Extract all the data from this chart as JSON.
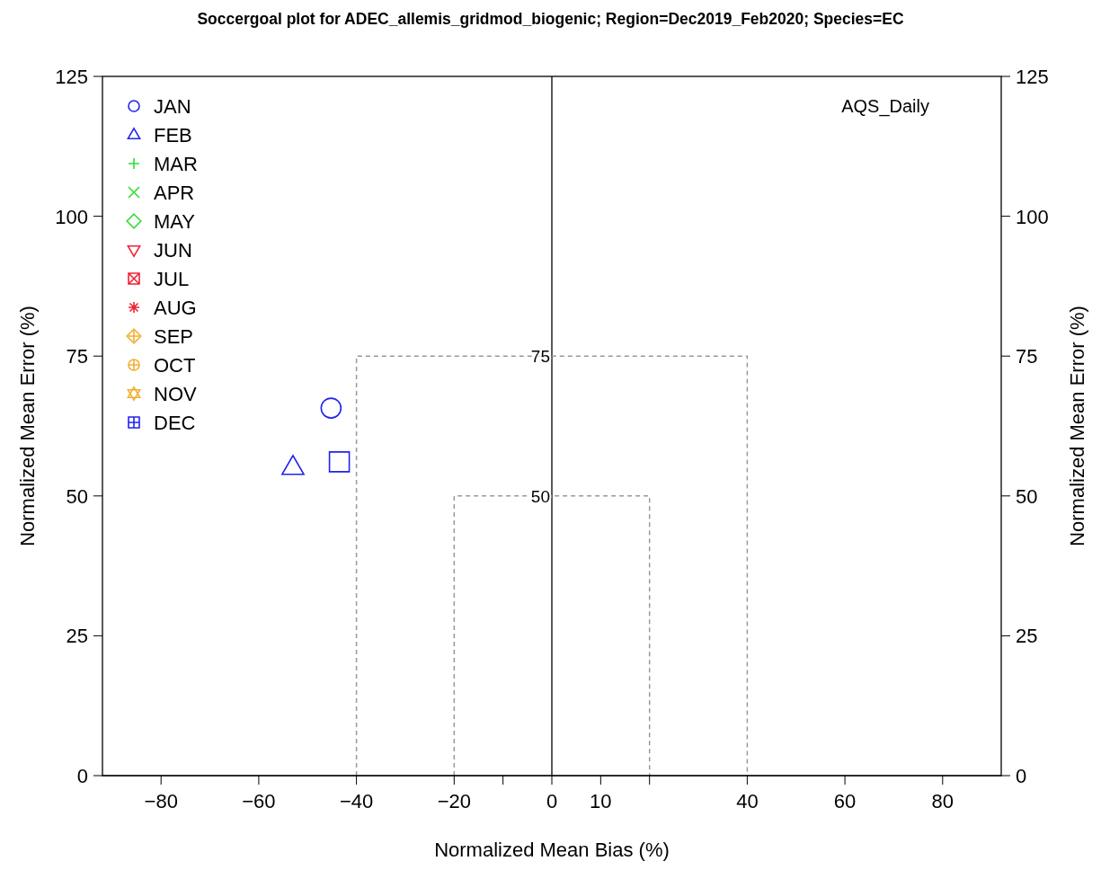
{
  "chart_data": {
    "type": "scatter",
    "title": "Soccergoal plot for ADEC_allemis_gridmod_biogenic; Region=Dec2019_Feb2020; Species=EC",
    "xlabel": "Normalized Mean Bias (%)",
    "ylabel": "Normalized Mean Error (%)",
    "y2label": "Normalized Mean Error (%)",
    "xlim": [
      -92,
      92
    ],
    "xticks": [
      -80,
      -60,
      -40,
      -20,
      {
        "value": -10,
        "label": null
      },
      0,
      10,
      {
        "value": 20,
        "label": null
      },
      40,
      60,
      80
    ],
    "ylim": [
      0,
      125
    ],
    "yticks": [
      0,
      25,
      50,
      75,
      100,
      125
    ],
    "y2lim": [
      0,
      125
    ],
    "y2ticks": [
      0,
      25,
      50,
      75,
      100,
      125
    ],
    "grid": false,
    "legend": "top left",
    "ref_lines": [
      {
        "axis": "x",
        "value": 0,
        "color": "#000000"
      }
    ],
    "annotations": [
      "AQS_Daily",
      {
        "text": "75",
        "x": 0,
        "y": 75
      },
      {
        "text": "50",
        "x": 0,
        "y": 50
      }
    ],
    "series": [
      {
        "type": "line",
        "color": "#999999",
        "line_style": "dashed",
        "marker": "none",
        "x": [
          -40,
          -40,
          40,
          40
        ],
        "values": [
          0,
          75,
          75,
          0
        ]
      },
      {
        "type": "line",
        "color": "#999999",
        "line_style": "dashed",
        "marker": "none",
        "x": [
          -20,
          -20,
          20,
          20
        ],
        "values": [
          0,
          50,
          50,
          0
        ]
      },
      {
        "name": "JAN",
        "color": "#2222ee",
        "marker": "circle",
        "x": [
          -45.2
        ],
        "values": [
          65.7
        ]
      },
      {
        "name": "FEB",
        "color": "#2222ee",
        "marker": "triangle",
        "x": [
          -53
        ],
        "values": [
          55.1
        ]
      },
      {
        "name": "MAR",
        "color": "#33dd33",
        "marker": "cross"
      },
      {
        "name": "APR",
        "color": "#33dd33",
        "marker": "x"
      },
      {
        "name": "MAY",
        "color": "#33dd33",
        "marker": "diamond"
      },
      {
        "name": "JUN",
        "color": "#ee2233",
        "marker": "triangle-down"
      },
      {
        "name": "JUL",
        "color": "#ee2233",
        "marker": "square-x"
      },
      {
        "name": "AUG",
        "color": "#ee2233",
        "marker": "star"
      },
      {
        "name": "SEP",
        "color": "#f0b030",
        "marker": "diamond-plus"
      },
      {
        "name": "OCT",
        "color": "#f0b030",
        "marker": "circle-plus"
      },
      {
        "name": "NOV",
        "color": "#f0b030",
        "marker": "hexagram"
      },
      {
        "name": "DEC",
        "color": "#2222ee",
        "marker": "square",
        "x": [
          -43.5
        ],
        "values": [
          56.1
        ]
      }
    ]
  }
}
